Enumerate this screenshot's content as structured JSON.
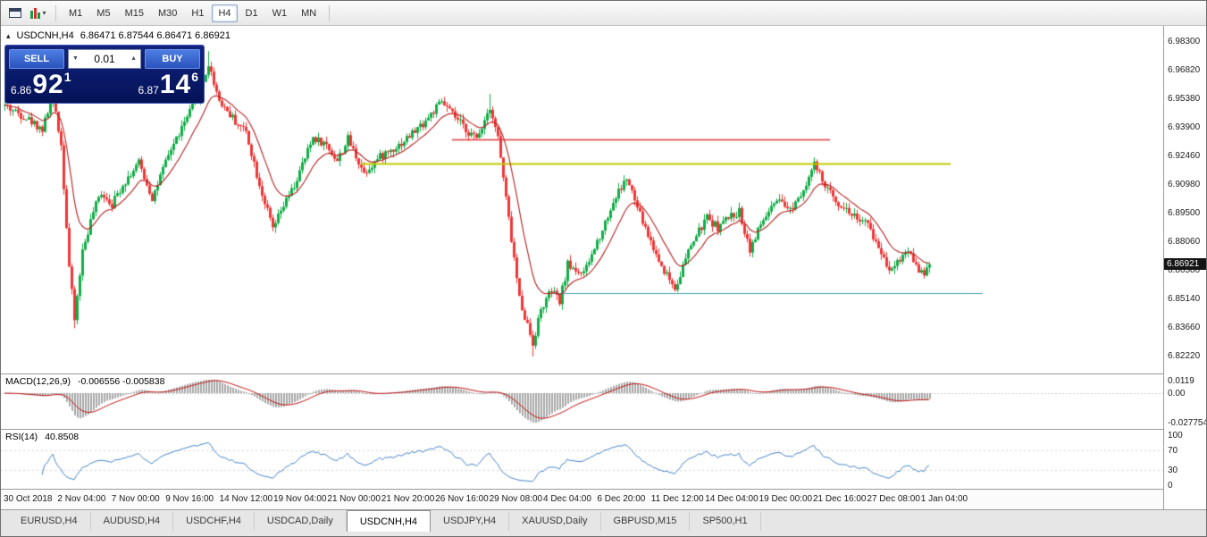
{
  "toolbar": {
    "timeframes": [
      {
        "label": "M1",
        "active": false
      },
      {
        "label": "M5",
        "active": false
      },
      {
        "label": "M15",
        "active": false
      },
      {
        "label": "M30",
        "active": false
      },
      {
        "label": "H1",
        "active": false
      },
      {
        "label": "H4",
        "active": true
      },
      {
        "label": "D1",
        "active": false
      },
      {
        "label": "W1",
        "active": false
      },
      {
        "label": "MN",
        "active": false
      }
    ]
  },
  "icons": {
    "one_click_toggle": "▴",
    "caret_down": "▼",
    "caret_up": "▲",
    "dropdown": "▾"
  },
  "trade_panel": {
    "sell_label": "SELL",
    "buy_label": "BUY",
    "volume": "0.01",
    "sell_price_main": "6.86",
    "sell_price_big": "92",
    "sell_price_pip": "1",
    "buy_price_main": "6.87",
    "buy_price_big": "14",
    "buy_price_pip": "6"
  },
  "chart": {
    "title": "USDCNH,H4",
    "ohlc": "6.86471 6.87544 6.86471 6.86921",
    "current_price": "6.86921",
    "price_axis_labels": [
      "6.98300",
      "6.96820",
      "6.95380",
      "6.93900",
      "6.92460",
      "6.90980",
      "6.89500",
      "6.88060",
      "6.86580",
      "6.85140",
      "6.83660",
      "6.82220"
    ],
    "date_labels": [
      "30 Oct 2018",
      "2 Nov 04:00",
      "7 Nov 00:00",
      "9 Nov 16:00",
      "14 Nov 12:00",
      "19 Nov 04:00",
      "21 Nov 00:00",
      "21 Nov 20:00",
      "26 Nov 16:00",
      "29 Nov 08:00",
      "4 Dec 04:00",
      "6 Dec 20:00",
      "11 Dec 12:00",
      "14 Dec 04:00",
      "19 Dec 00:00",
      "21 Dec 16:00",
      "27 Dec 08:00",
      "1 Jan 04:00"
    ]
  },
  "macd": {
    "title": "MACD(12,26,9)",
    "values": "-0.006556 -0.005838",
    "axis_top": "0.0119",
    "axis_zero": "0.00",
    "axis_bottom": "-0.027754"
  },
  "rsi": {
    "title": "RSI(14)",
    "value": "40.8508",
    "axis": [
      "100",
      "70",
      "30",
      "0"
    ]
  },
  "tabs": [
    {
      "label": "EURUSD,H4",
      "active": false
    },
    {
      "label": "AUDUSD,H4",
      "active": false
    },
    {
      "label": "USDCHF,H4",
      "active": false
    },
    {
      "label": "USDCAD,Daily",
      "active": false
    },
    {
      "label": "USDCNH,H4",
      "active": true
    },
    {
      "label": "USDJPY,H4",
      "active": false
    },
    {
      "label": "XAUUSD,Daily",
      "active": false
    },
    {
      "label": "GBPUSD,M15",
      "active": false
    },
    {
      "label": "SP500,H1",
      "active": false
    }
  ],
  "chart_data": {
    "type": "candlestick",
    "symbol": "USDCNH",
    "period": "H4",
    "price_range": [
      6.8222,
      6.983
    ],
    "last_close": 6.86921,
    "anchors": [
      [
        0,
        6.95
      ],
      [
        8,
        6.944
      ],
      [
        14,
        6.938
      ],
      [
        18,
        6.956
      ],
      [
        21,
        6.93
      ],
      [
        24,
        6.868
      ],
      [
        26,
        6.841
      ],
      [
        29,
        6.876
      ],
      [
        33,
        6.896
      ],
      [
        36,
        6.906
      ],
      [
        40,
        6.9
      ],
      [
        44,
        6.91
      ],
      [
        50,
        6.921
      ],
      [
        55,
        6.903
      ],
      [
        62,
        6.928
      ],
      [
        68,
        6.944
      ],
      [
        73,
        6.958
      ],
      [
        76,
        6.971
      ],
      [
        80,
        6.953
      ],
      [
        86,
        6.942
      ],
      [
        90,
        6.937
      ],
      [
        95,
        6.91
      ],
      [
        100,
        6.887
      ],
      [
        104,
        6.899
      ],
      [
        108,
        6.909
      ],
      [
        115,
        6.934
      ],
      [
        120,
        6.93
      ],
      [
        124,
        6.922
      ],
      [
        128,
        6.933
      ],
      [
        134,
        6.916
      ],
      [
        140,
        6.924
      ],
      [
        148,
        6.931
      ],
      [
        156,
        6.941
      ],
      [
        163,
        6.952
      ],
      [
        168,
        6.944
      ],
      [
        172,
        6.938
      ],
      [
        176,
        6.933
      ],
      [
        181,
        6.95
      ],
      [
        184,
        6.934
      ],
      [
        188,
        6.892
      ],
      [
        192,
        6.852
      ],
      [
        197,
        6.829
      ],
      [
        200,
        6.846
      ],
      [
        204,
        6.856
      ],
      [
        207,
        6.85
      ],
      [
        210,
        6.869
      ],
      [
        216,
        6.864
      ],
      [
        222,
        6.884
      ],
      [
        228,
        6.904
      ],
      [
        232,
        6.913
      ],
      [
        236,
        6.898
      ],
      [
        240,
        6.884
      ],
      [
        244,
        6.871
      ],
      [
        250,
        6.857
      ],
      [
        256,
        6.879
      ],
      [
        262,
        6.893
      ],
      [
        266,
        6.888
      ],
      [
        270,
        6.893
      ],
      [
        274,
        6.896
      ],
      [
        278,
        6.877
      ],
      [
        283,
        6.892
      ],
      [
        288,
        6.901
      ],
      [
        293,
        6.897
      ],
      [
        298,
        6.908
      ],
      [
        302,
        6.92
      ],
      [
        306,
        6.909
      ],
      [
        310,
        6.902
      ],
      [
        314,
        6.897
      ],
      [
        318,
        6.893
      ],
      [
        322,
        6.889
      ],
      [
        326,
        6.878
      ],
      [
        330,
        6.867
      ],
      [
        334,
        6.872
      ],
      [
        337,
        6.877
      ],
      [
        340,
        6.869
      ],
      [
        343,
        6.863
      ],
      [
        345,
        6.8692
      ]
    ],
    "spikes": [
      [
        26,
        "l",
        6.8366
      ],
      [
        76,
        "h",
        6.9779
      ],
      [
        181,
        "h",
        6.956
      ],
      [
        197,
        "l",
        6.8222
      ]
    ],
    "hlines": [
      {
        "name": "resistance-line-red",
        "color": "#e23b3b",
        "price": 6.933,
        "i1": 167,
        "i2": 308,
        "width": 1.6
      },
      {
        "name": "resistance-line-yellow",
        "color": "#bfcc00",
        "price": 6.9205,
        "i1": 133,
        "i2": 353,
        "width": 2
      },
      {
        "name": "support-line-teal",
        "color": "#46a3a8",
        "price": 6.8547,
        "i1": 204,
        "i2": 365,
        "width": 1.2
      }
    ],
    "ma_period": 13,
    "colors": {
      "up": "#12ad47",
      "down": "#ef3636",
      "ma": "#b42020",
      "macd_hist": "#a8a8a8",
      "macd_signal": "#c01818",
      "rsi": "#4a86c8"
    }
  }
}
